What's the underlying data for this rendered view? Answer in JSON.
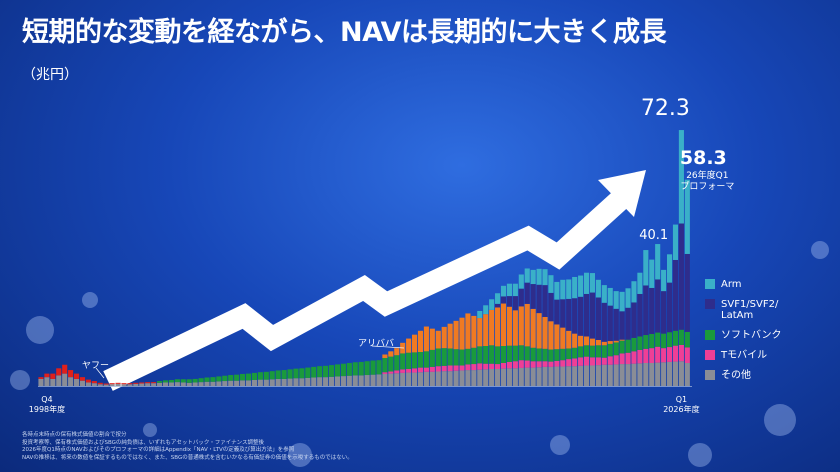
{
  "chart_data": {
    "type": "bar",
    "stacked": true,
    "title": "短期的な変動を経ながら、NAVは長期的に大きく成長",
    "subtitle": "（兆円）",
    "categories": [
      "Q4\n1998年度",
      null,
      null,
      null,
      null,
      null,
      null,
      null,
      null,
      null,
      null,
      null,
      null,
      null,
      null,
      null,
      null,
      null,
      null,
      null,
      null,
      null,
      null,
      null,
      null,
      null,
      null,
      null,
      null,
      null,
      null,
      null,
      null,
      null,
      null,
      null,
      null,
      null,
      null,
      null,
      null,
      null,
      null,
      null,
      null,
      null,
      null,
      null,
      null,
      null,
      null,
      null,
      null,
      null,
      null,
      null,
      null,
      null,
      null,
      null,
      null,
      null,
      null,
      null,
      null,
      null,
      null,
      null,
      null,
      null,
      null,
      null,
      null,
      null,
      null,
      null,
      null,
      null,
      null,
      null,
      null,
      null,
      null,
      null,
      null,
      null,
      null,
      null,
      null,
      null,
      null,
      null,
      null,
      null,
      null,
      null,
      null,
      null,
      null,
      null,
      null,
      null,
      null,
      null,
      null,
      null,
      null,
      null,
      "Q1\n2026年度",
      null
    ],
    "series": [
      {
        "name": "その他",
        "color": "#8a8d96",
        "values": [
          2,
          2.5,
          2,
          3,
          3.5,
          2.5,
          2,
          1.5,
          1,
          0.8,
          0.5,
          0.4,
          0.5,
          0.6,
          0.5,
          0.5,
          0.6,
          0.7,
          0.8,
          0.8,
          0.9,
          1,
          1,
          1.1,
          1,
          0.9,
          1,
          1.1,
          1.2,
          1.2,
          1.3,
          1.4,
          1.5,
          1.5,
          1.6,
          1.6,
          1.7,
          1.8,
          1.8,
          1.9,
          2,
          2,
          2.1,
          2.2,
          2.2,
          2.3,
          2.4,
          2.5,
          2.5,
          2.6,
          2.7,
          2.8,
          2.9,
          3,
          3,
          3.1,
          3.2,
          3.3,
          3.4,
          3.5,
          3.6,
          3.7,
          3.8,
          3.8,
          3.9,
          4,
          4,
          4.1,
          4.2,
          4.2,
          4.3,
          4.4,
          4.5,
          4.5,
          4.6,
          4.7,
          4.8,
          4.8,
          4.9,
          5,
          5,
          5.1,
          5.2,
          5.2,
          5.3,
          5.4,
          5.4,
          5.5,
          5.5,
          5.6,
          5.6,
          5.7,
          5.8,
          5.8,
          5.9,
          6,
          6,
          6.1,
          6.2,
          6.2,
          6.3,
          6.4,
          6.5,
          6.5,
          6.6,
          6.7,
          6.8,
          6.9,
          7,
          6.5
        ]
      },
      {
        "name": "ヤフー",
        "color": "#e0201b",
        "in_legend": false,
        "values": [
          0.5,
          1,
          1.5,
          2,
          2.5,
          2,
          1.5,
          1,
          0.8,
          0.6,
          0.4,
          0.3,
          0.3,
          0.3,
          0.3,
          0.3,
          0.3,
          0.3,
          0.3,
          0.3,
          0,
          0,
          0,
          0,
          0,
          0,
          0,
          0,
          0,
          0,
          0,
          0,
          0,
          0,
          0,
          0,
          0,
          0,
          0,
          0,
          0,
          0,
          0,
          0,
          0,
          0,
          0,
          0,
          0,
          0,
          0,
          0,
          0,
          0,
          0,
          0,
          0,
          0,
          0,
          0,
          0,
          0,
          0,
          0,
          0,
          0,
          0,
          0,
          0,
          0,
          0,
          0,
          0,
          0,
          0,
          0,
          0,
          0,
          0,
          0,
          0,
          0,
          0,
          0,
          0,
          0,
          0,
          0,
          0,
          0,
          0,
          0,
          0,
          0,
          0,
          0,
          0,
          0,
          0,
          0,
          0,
          0,
          0,
          0,
          0,
          0,
          0,
          0,
          0,
          0
        ]
      },
      {
        "name": "Tモバイル",
        "color": "#ef3f96",
        "values": [
          0,
          0,
          0,
          0,
          0,
          0,
          0,
          0,
          0,
          0,
          0,
          0,
          0,
          0,
          0,
          0,
          0,
          0,
          0,
          0,
          0,
          0,
          0,
          0,
          0,
          0,
          0,
          0,
          0,
          0,
          0,
          0,
          0,
          0,
          0,
          0,
          0,
          0,
          0,
          0,
          0,
          0,
          0,
          0,
          0,
          0,
          0,
          0,
          0,
          0,
          0,
          0,
          0,
          0,
          0,
          0,
          0,
          0,
          0.5,
          0.6,
          0.8,
          1,
          1,
          1.2,
          1.3,
          1.2,
          1.4,
          1.5,
          1.5,
          1.6,
          1.5,
          1.4,
          1.6,
          1.7,
          1.8,
          1.6,
          1.5,
          1.4,
          1.6,
          1.8,
          2,
          2.2,
          2,
          1.8,
          1.7,
          1.6,
          1.5,
          1.6,
          1.8,
          2,
          2.2,
          2.4,
          2.5,
          2.3,
          2.2,
          2,
          2.4,
          2.6,
          3,
          3.2,
          3.5,
          3.8,
          4,
          4.2,
          4.5,
          4,
          4.2,
          4.5,
          4.6,
          4.4
        ]
      },
      {
        "name": "ソフトバンク",
        "color": "#1a9a3c",
        "values": [
          0,
          0,
          0,
          0,
          0,
          0,
          0,
          0,
          0,
          0,
          0,
          0,
          0,
          0,
          0,
          0,
          0,
          0,
          0,
          0,
          0.5,
          0.6,
          0.7,
          0.8,
          0.9,
          1,
          1,
          1.1,
          1.2,
          1.3,
          1.4,
          1.5,
          1.6,
          1.7,
          1.8,
          1.9,
          2,
          2.1,
          2.2,
          2.3,
          2.4,
          2.5,
          2.6,
          2.7,
          2.8,
          2.9,
          3,
          3.1,
          3.2,
          3.3,
          3.4,
          3.5,
          3.6,
          3.7,
          3.8,
          3.9,
          4,
          4,
          4,
          4.2,
          4.3,
          4.5,
          4.6,
          4.5,
          4.4,
          4.6,
          4.8,
          5,
          5,
          4.8,
          4.6,
          4.5,
          4.4,
          4.6,
          4.8,
          5,
          5.2,
          5,
          4.8,
          4.6,
          4.4,
          4.2,
          4,
          3.8,
          3.6,
          3.5,
          3.4,
          3.3,
          3.2,
          3,
          3,
          3.1,
          3.2,
          3.3,
          3.4,
          3.5,
          3.5,
          3.6,
          3.6,
          3.7,
          3.8,
          3.8,
          3.9,
          4,
          4,
          4.1,
          4.2,
          4.2,
          4.3,
          4.4
        ]
      },
      {
        "name": "アリババ",
        "color": "#f07a22",
        "in_legend": false,
        "values": [
          0,
          0,
          0,
          0,
          0,
          0,
          0,
          0,
          0,
          0,
          0,
          0,
          0,
          0,
          0,
          0,
          0,
          0,
          0,
          0,
          0,
          0,
          0,
          0,
          0,
          0,
          0,
          0,
          0,
          0,
          0,
          0,
          0,
          0,
          0,
          0,
          0,
          0,
          0,
          0,
          0,
          0,
          0,
          0,
          0,
          0,
          0,
          0,
          0,
          0,
          0,
          0,
          0,
          0,
          0,
          0,
          0,
          0,
          1,
          1.5,
          2,
          3,
          4,
          5,
          6,
          7,
          6,
          5,
          6,
          7,
          8,
          9,
          10,
          9,
          8,
          9,
          10,
          11,
          12,
          11,
          10,
          11,
          12,
          11,
          10,
          9,
          8,
          7,
          6,
          5,
          4,
          3,
          2.5,
          2,
          1.5,
          1,
          0.8,
          0.5,
          0.3,
          0,
          0,
          0,
          0,
          0,
          0,
          0,
          0,
          0,
          0,
          0
        ]
      },
      {
        "name": "SVF1/SVF2/\nLatAm",
        "color": "#2e2d8c",
        "values": [
          0,
          0,
          0,
          0,
          0,
          0,
          0,
          0,
          0,
          0,
          0,
          0,
          0,
          0,
          0,
          0,
          0,
          0,
          0,
          0,
          0,
          0,
          0,
          0,
          0,
          0,
          0,
          0,
          0,
          0,
          0,
          0,
          0,
          0,
          0,
          0,
          0,
          0,
          0,
          0,
          0,
          0,
          0,
          0,
          0,
          0,
          0,
          0,
          0,
          0,
          0,
          0,
          0,
          0,
          0,
          0,
          0,
          0,
          0,
          0,
          0,
          0,
          0,
          0,
          0,
          0,
          0,
          0,
          0,
          0,
          0,
          0,
          0,
          0,
          0,
          0,
          0,
          1,
          2,
          3,
          4,
          5,
          6,
          7,
          8,
          9,
          8,
          7,
          8,
          9,
          10,
          11,
          12,
          13,
          12,
          11,
          10,
          9,
          8,
          9,
          10,
          12,
          14,
          13,
          15,
          12,
          14,
          20,
          30,
          22
        ]
      },
      {
        "name": "Arm",
        "color": "#3ab0c8",
        "values": [
          0,
          0,
          0,
          0,
          0,
          0,
          0,
          0,
          0,
          0,
          0,
          0,
          0,
          0,
          0,
          0,
          0,
          0,
          0,
          0,
          0,
          0,
          0,
          0,
          0,
          0,
          0,
          0,
          0,
          0,
          0,
          0,
          0,
          0,
          0,
          0,
          0,
          0,
          0,
          0,
          0,
          0,
          0,
          0,
          0,
          0,
          0,
          0,
          0,
          0,
          0,
          0,
          0,
          0,
          0,
          0,
          0,
          0,
          0,
          0,
          0,
          0,
          0,
          0,
          0,
          0,
          0,
          0,
          0,
          0,
          0,
          0,
          0,
          0,
          2,
          2.5,
          3,
          3,
          3,
          3.5,
          3.5,
          4,
          4,
          4,
          4.5,
          4.5,
          5,
          5,
          5.5,
          5.5,
          6,
          6,
          6,
          5.5,
          5,
          5,
          5,
          5,
          5.5,
          5.5,
          6,
          6,
          10,
          8,
          10,
          6,
          8,
          10,
          26.4,
          21
        ]
      }
    ],
    "annotations": [
      {
        "value": 72.3
      },
      {
        "value": 58.3,
        "note": "26年度Q1\nプロフォーマ"
      },
      {
        "value": 40.1
      }
    ],
    "footnotes": [
      "各時点末時点の保有株式価値の割合で按分",
      "投資考察等、保有株式価値およびSBGの純負債は、いずれもアセットバック・ファイナンス調整後",
      "2026年度Q1時点のNAVおよびそのプロフォーマの詳細はAppendix「NAV・LTVの定義及び算出方法」を参照",
      "NAVの推移は、将来の数値を保証するものではなく、また、SBGの普通株式を含むいかなる有価証券の価値を示唆するものではない。"
    ]
  }
}
